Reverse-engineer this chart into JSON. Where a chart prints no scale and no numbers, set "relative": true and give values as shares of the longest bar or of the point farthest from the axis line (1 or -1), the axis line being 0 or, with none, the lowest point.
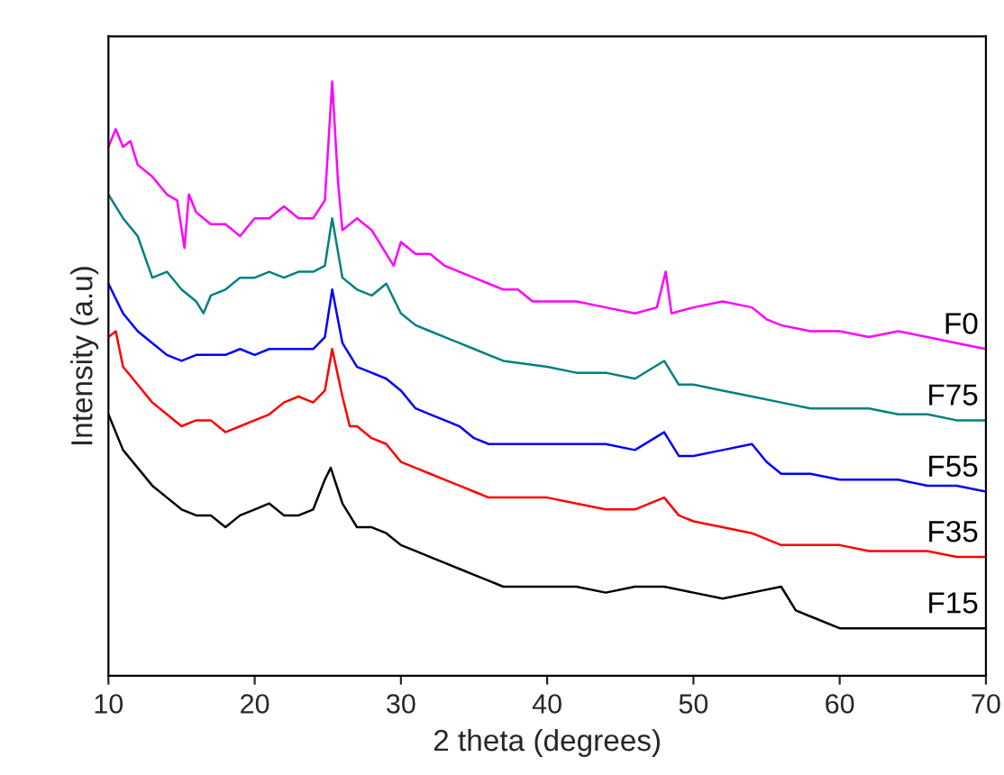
{
  "chart_data": {
    "type": "line",
    "xlabel": "2 theta (degrees)",
    "ylabel": "Intensity (a.u)",
    "relative": true,
    "xlim": [
      10,
      70
    ],
    "xticks": [
      10,
      20,
      30,
      40,
      50,
      60,
      70
    ],
    "tick_labels": "x",
    "legend": false,
    "grid": false,
    "series": [
      {
        "name": "F0",
        "color": "#ff00ff",
        "x": [
          10,
          10.5,
          11,
          11.5,
          12,
          13,
          14,
          14.7,
          15.2,
          15.5,
          16,
          17,
          18,
          19,
          20,
          21,
          22,
          23,
          24,
          24.8,
          25.3,
          25.7,
          26,
          27,
          28,
          29.5,
          30,
          31,
          32,
          33,
          34,
          35,
          36,
          37,
          38,
          39,
          40,
          42,
          44,
          46,
          47.5,
          48.1,
          48.5,
          50,
          52,
          54,
          55,
          56,
          58,
          60,
          62,
          64,
          66,
          68,
          70
        ],
        "values": [
          0.89,
          0.92,
          0.89,
          0.9,
          0.86,
          0.84,
          0.81,
          0.8,
          0.72,
          0.81,
          0.78,
          0.76,
          0.76,
          0.74,
          0.77,
          0.77,
          0.79,
          0.77,
          0.77,
          0.8,
          1.0,
          0.83,
          0.75,
          0.77,
          0.75,
          0.69,
          0.73,
          0.71,
          0.71,
          0.69,
          0.68,
          0.67,
          0.66,
          0.65,
          0.65,
          0.63,
          0.63,
          0.63,
          0.62,
          0.61,
          0.62,
          0.68,
          0.61,
          0.62,
          0.63,
          0.62,
          0.6,
          0.59,
          0.58,
          0.58,
          0.57,
          0.58,
          0.57,
          0.56,
          0.55
        ]
      },
      {
        "name": "F75",
        "color": "#008080",
        "x": [
          10,
          11,
          12,
          13,
          14,
          15,
          16,
          16.5,
          17,
          18,
          19,
          20,
          21,
          22,
          23,
          24,
          24.8,
          25.3,
          26,
          27,
          28,
          29,
          30,
          31,
          32,
          33,
          34,
          35,
          36,
          37,
          40,
          42,
          44,
          46,
          48,
          49,
          50,
          52,
          54,
          56,
          58,
          60,
          62,
          64,
          66,
          68,
          70
        ],
        "values": [
          0.81,
          0.77,
          0.74,
          0.67,
          0.68,
          0.65,
          0.63,
          0.61,
          0.64,
          0.65,
          0.67,
          0.67,
          0.68,
          0.67,
          0.68,
          0.68,
          0.69,
          0.77,
          0.67,
          0.65,
          0.64,
          0.66,
          0.61,
          0.59,
          0.58,
          0.57,
          0.56,
          0.55,
          0.54,
          0.53,
          0.52,
          0.51,
          0.51,
          0.5,
          0.53,
          0.49,
          0.49,
          0.48,
          0.47,
          0.46,
          0.45,
          0.45,
          0.45,
          0.44,
          0.44,
          0.43,
          0.43
        ]
      },
      {
        "name": "F55",
        "color": "#0000ff",
        "x": [
          10,
          11,
          12,
          13,
          14,
          15,
          16,
          17,
          18,
          19,
          20,
          21,
          22,
          23,
          24,
          24.8,
          25.3,
          26,
          27,
          28,
          29,
          30,
          31,
          32,
          33,
          34,
          35,
          36,
          37,
          40,
          42,
          44,
          46,
          48,
          49,
          50,
          52,
          54,
          55,
          56,
          58,
          60,
          62,
          64,
          66,
          68,
          70
        ],
        "values": [
          0.66,
          0.61,
          0.58,
          0.56,
          0.54,
          0.53,
          0.54,
          0.54,
          0.54,
          0.55,
          0.54,
          0.55,
          0.55,
          0.55,
          0.55,
          0.57,
          0.65,
          0.56,
          0.52,
          0.51,
          0.5,
          0.48,
          0.45,
          0.44,
          0.43,
          0.42,
          0.4,
          0.39,
          0.39,
          0.39,
          0.39,
          0.39,
          0.38,
          0.41,
          0.37,
          0.37,
          0.38,
          0.39,
          0.36,
          0.34,
          0.34,
          0.33,
          0.33,
          0.33,
          0.32,
          0.32,
          0.31
        ]
      },
      {
        "name": "F35",
        "color": "#ff0000",
        "x": [
          10,
          10.5,
          11,
          12,
          13,
          14,
          15,
          16,
          17,
          18,
          19,
          20,
          21,
          22,
          23,
          24,
          24.8,
          25.3,
          26,
          26.5,
          27,
          28,
          29,
          30,
          31,
          32,
          33,
          34,
          35,
          36,
          40,
          42,
          44,
          46,
          48,
          49,
          50,
          52,
          54,
          56,
          58,
          60,
          62,
          64,
          66,
          68,
          70
        ],
        "values": [
          0.57,
          0.58,
          0.52,
          0.49,
          0.46,
          0.44,
          0.42,
          0.43,
          0.43,
          0.41,
          0.42,
          0.43,
          0.44,
          0.46,
          0.47,
          0.46,
          0.48,
          0.55,
          0.47,
          0.42,
          0.42,
          0.4,
          0.39,
          0.36,
          0.35,
          0.34,
          0.33,
          0.32,
          0.31,
          0.3,
          0.3,
          0.29,
          0.28,
          0.28,
          0.3,
          0.27,
          0.26,
          0.25,
          0.24,
          0.22,
          0.22,
          0.22,
          0.21,
          0.21,
          0.21,
          0.2,
          0.2
        ]
      },
      {
        "name": "F15",
        "color": "#000000",
        "x": [
          10,
          11,
          12,
          13,
          14,
          15,
          16,
          17,
          18,
          19,
          20,
          21,
          22,
          23,
          24,
          24.8,
          25.2,
          26,
          27,
          28,
          29,
          30,
          31,
          32,
          33,
          34,
          35,
          36,
          37,
          40,
          42,
          44,
          46,
          48,
          50,
          52,
          54,
          56,
          57,
          58,
          60,
          62,
          64,
          66,
          68,
          70
        ],
        "values": [
          0.44,
          0.38,
          0.35,
          0.32,
          0.3,
          0.28,
          0.27,
          0.27,
          0.25,
          0.27,
          0.28,
          0.29,
          0.27,
          0.27,
          0.28,
          0.33,
          0.35,
          0.29,
          0.25,
          0.25,
          0.24,
          0.22,
          0.21,
          0.2,
          0.19,
          0.18,
          0.17,
          0.16,
          0.15,
          0.15,
          0.15,
          0.14,
          0.15,
          0.15,
          0.14,
          0.13,
          0.14,
          0.15,
          0.11,
          0.1,
          0.08,
          0.08,
          0.08,
          0.08,
          0.08,
          0.08
        ]
      }
    ]
  }
}
